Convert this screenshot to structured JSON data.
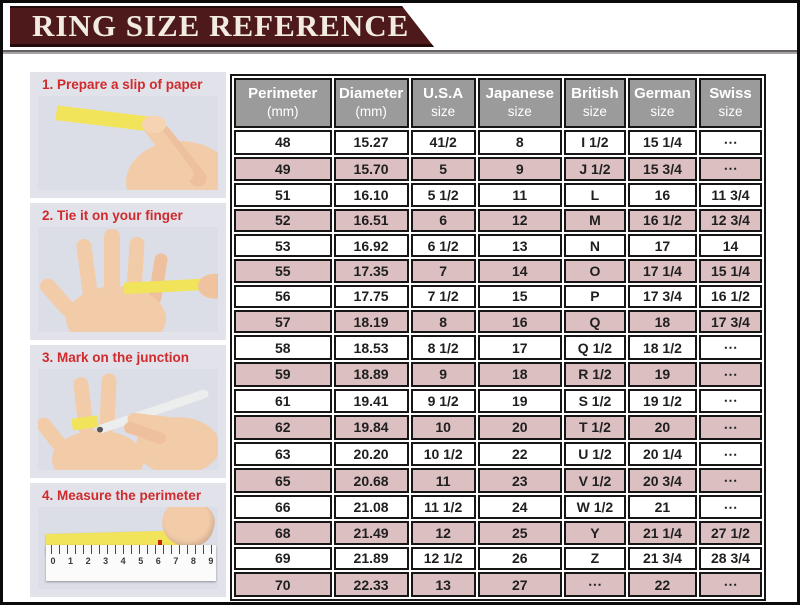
{
  "banner": {
    "title": "RING SIZE REFERENCE"
  },
  "steps": [
    {
      "label": "1. Prepare a slip of paper",
      "photo": "hand-holding-yellow-paper-slip"
    },
    {
      "label": "2. Tie it on your finger",
      "photo": "paper-strip-wrapped-around-finger"
    },
    {
      "label": "3. Mark on the junction",
      "photo": "pen-marking-junction-on-finger"
    },
    {
      "label": "4. Measure the perimeter",
      "photo": "ruler-measuring-paper-strip"
    }
  ],
  "ruler_numbers": [
    "0",
    "1",
    "2",
    "3",
    "4",
    "5",
    "6",
    "7",
    "8",
    "9"
  ],
  "chart_data": {
    "type": "table",
    "title": "RING SIZE REFERENCE",
    "columns": [
      {
        "label": "Perimeter",
        "sub": "(mm)"
      },
      {
        "label": "Diameter",
        "sub": "(mm)"
      },
      {
        "label": "U.S.A",
        "sub": "size"
      },
      {
        "label": "Japanese",
        "sub": "size"
      },
      {
        "label": "British",
        "sub": "size"
      },
      {
        "label": "German",
        "sub": "size"
      },
      {
        "label": "Swiss",
        "sub": "size"
      }
    ],
    "rows": [
      [
        "48",
        "15.27",
        "41/2",
        "8",
        "I 1/2",
        "15 1/4",
        "⋯"
      ],
      [
        "49",
        "15.70",
        "5",
        "9",
        "J 1/2",
        "15 3/4",
        "⋯"
      ],
      [
        "51",
        "16.10",
        "5 1/2",
        "11",
        "L",
        "16",
        "11 3/4"
      ],
      [
        "52",
        "16.51",
        "6",
        "12",
        "M",
        "16 1/2",
        "12 3/4"
      ],
      [
        "53",
        "16.92",
        "6 1/2",
        "13",
        "N",
        "17",
        "14"
      ],
      [
        "55",
        "17.35",
        "7",
        "14",
        "O",
        "17 1/4",
        "15 1/4"
      ],
      [
        "56",
        "17.75",
        "7 1/2",
        "15",
        "P",
        "17 3/4",
        "16 1/2"
      ],
      [
        "57",
        "18.19",
        "8",
        "16",
        "Q",
        "18",
        "17 3/4"
      ],
      [
        "58",
        "18.53",
        "8 1/2",
        "17",
        "Q 1/2",
        "18 1/2",
        "⋯"
      ],
      [
        "59",
        "18.89",
        "9",
        "18",
        "R 1/2",
        "19",
        "⋯"
      ],
      [
        "61",
        "19.41",
        "9 1/2",
        "19",
        "S 1/2",
        "19 1/2",
        "⋯"
      ],
      [
        "62",
        "19.84",
        "10",
        "20",
        "T 1/2",
        "20",
        "⋯"
      ],
      [
        "63",
        "20.20",
        "10 1/2",
        "22",
        "U 1/2",
        "20 1/4",
        "⋯"
      ],
      [
        "65",
        "20.68",
        "11",
        "23",
        "V 1/2",
        "20 3/4",
        "⋯"
      ],
      [
        "66",
        "21.08",
        "11 1/2",
        "24",
        "W 1/2",
        "21",
        "⋯"
      ],
      [
        "68",
        "21.49",
        "12",
        "25",
        "Y",
        "21 1/4",
        "27 1/2"
      ],
      [
        "69",
        "21.89",
        "12 1/2",
        "26",
        "Z",
        "21 3/4",
        "28 3/4"
      ],
      [
        "70",
        "22.33",
        "13",
        "27",
        "⋯",
        "22",
        "⋯"
      ]
    ]
  },
  "colors": {
    "banner_bg": "#4d191b",
    "banner_text": "#f1ebe2",
    "header_bg": "#9b9b9b",
    "row_alt_bg": "#dcbfc0",
    "row_bg": "#ffffff",
    "step_label": "#cf2a2d",
    "panel_bg": "#e2e3ea",
    "slip_yellow": "#f1e35a"
  }
}
